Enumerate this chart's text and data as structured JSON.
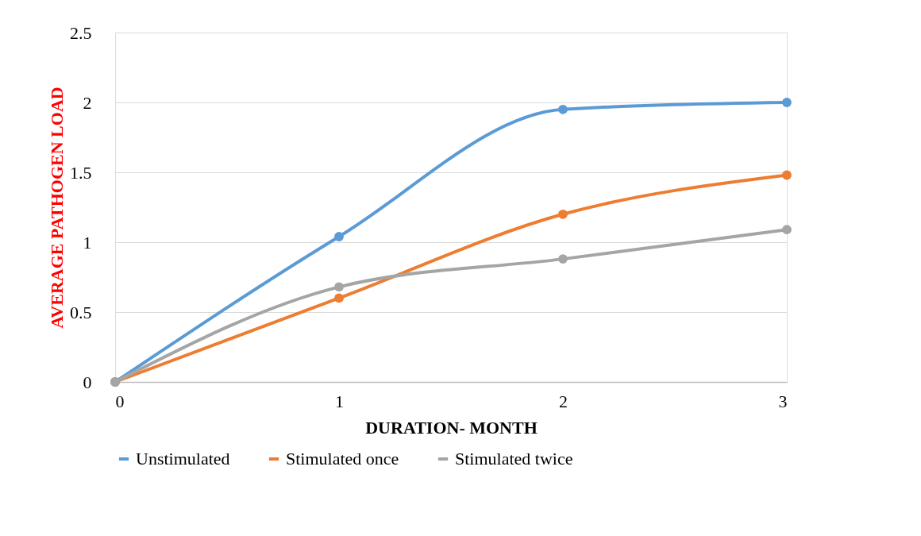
{
  "chart_data": {
    "type": "line",
    "xlabel": "DURATION- MONTH",
    "ylabel": "AVERAGE PATHOGEN LOAD",
    "x": [
      0,
      1,
      2,
      3
    ],
    "series": [
      {
        "name": "Unstimulated",
        "color": "#5b9bd5",
        "values": [
          0,
          1.04,
          1.95,
          2.0
        ]
      },
      {
        "name": "Stimulated once",
        "color": "#ed7d31",
        "values": [
          0,
          0.6,
          1.2,
          1.48
        ]
      },
      {
        "name": "Stimulated twice",
        "color": "#a5a5a5",
        "values": [
          0,
          0.68,
          0.88,
          1.09
        ]
      }
    ],
    "xlim": [
      0,
      3
    ],
    "xticks": [
      0,
      1,
      2,
      3
    ],
    "ylim": [
      0,
      2.5
    ],
    "yticks": [
      0,
      0.5,
      1,
      1.5,
      2,
      2.5
    ],
    "grid": "y",
    "legend": "bottom",
    "marker": "circle",
    "line_style": "solid"
  }
}
